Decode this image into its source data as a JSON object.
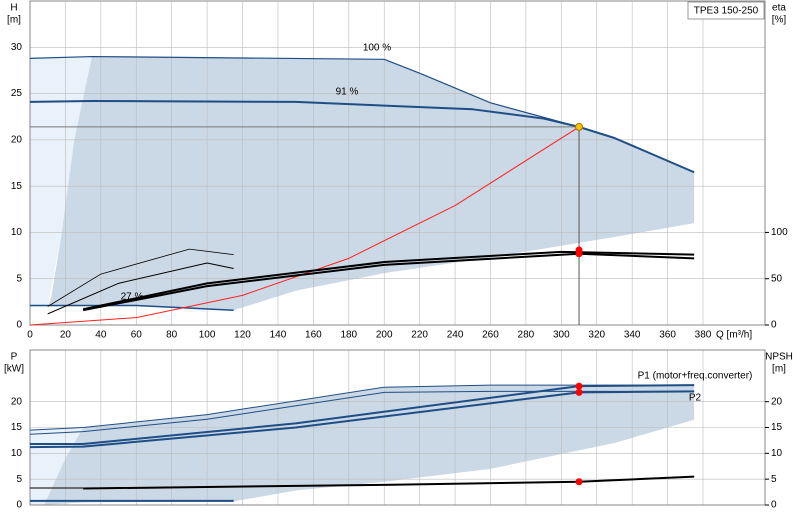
{
  "chart_data": [
    {
      "type": "line",
      "title": "TPE3 150-250",
      "ylabel": "H",
      "yunit": "[m]",
      "y2label": "eta",
      "y2unit": "[%]",
      "xlabel": "Q [m³/h]",
      "xlim": [
        0,
        415
      ],
      "xticks": [
        0,
        20,
        40,
        60,
        80,
        100,
        120,
        140,
        160,
        180,
        200,
        220,
        240,
        260,
        280,
        300,
        320,
        340,
        360,
        380
      ],
      "ylim": [
        0,
        35
      ],
      "yticks": [
        0,
        5,
        10,
        15,
        20,
        25,
        30
      ],
      "y2lim": [
        0,
        350
      ],
      "y2ticks": [
        0,
        50,
        100
      ],
      "grid": true,
      "areas": [
        {
          "color": "#e9f1fa",
          "x": [
            0,
            35,
            25,
            18,
            10,
            0
          ],
          "values": [
            28.8,
            29,
            20,
            10,
            2,
            2
          ]
        },
        {
          "color": "#cbd8e5",
          "x": [
            35,
            200,
            220,
            260,
            310,
            330,
            375,
            375,
            330,
            260,
            200,
            150,
            115,
            60,
            10,
            12,
            18,
            25
          ],
          "values": [
            29,
            28.7,
            27.2,
            24,
            21.4,
            20.2,
            16.5,
            11,
            9.5,
            7.3,
            5.6,
            3.7,
            1.6,
            2.1,
            2,
            3,
            10,
            20
          ]
        }
      ],
      "series": [
        {
          "name": "100 %",
          "color": "#1f4e86",
          "width": 1.2,
          "x": [
            0,
            35,
            200,
            220,
            260,
            310,
            330,
            375
          ],
          "values": [
            28.8,
            29,
            28.7,
            27.2,
            24,
            21.4,
            20.2,
            16.5
          ]
        },
        {
          "name": "91 %",
          "color": "#1f4e86",
          "width": 2,
          "x": [
            0,
            35,
            150,
            250,
            290,
            310,
            330,
            375
          ],
          "values": [
            24.1,
            24.2,
            24.1,
            23.3,
            22.3,
            21.4,
            20.2,
            16.5
          ]
        },
        {
          "name": "27 %",
          "color": "#1f4e86",
          "width": 1.5,
          "x": [
            0,
            60,
            115
          ],
          "values": [
            2.1,
            2.1,
            1.6
          ]
        },
        {
          "color": "#ff2020",
          "width": 1,
          "x": [
            0,
            60,
            120,
            180,
            240,
            310
          ],
          "values": [
            0,
            0.8,
            3.2,
            7.2,
            12.9,
            21.4
          ]
        },
        {
          "color": "#777777",
          "width": 1,
          "x": [
            0,
            310
          ],
          "values": [
            21.4,
            21.4
          ]
        },
        {
          "color": "#555555",
          "width": 1,
          "x": [
            310,
            310
          ],
          "values": [
            21.4,
            0
          ]
        },
        {
          "color": "#000000",
          "width": 0.8,
          "axis": "y2",
          "x": [
            10,
            40,
            90,
            115
          ],
          "values": [
            20,
            55,
            82,
            76
          ]
        },
        {
          "color": "#000000",
          "width": 1,
          "axis": "y2",
          "x": [
            10,
            50,
            100,
            115
          ],
          "values": [
            12,
            45,
            67,
            61
          ]
        },
        {
          "color": "#000000",
          "width": 2,
          "axis": "y2",
          "x": [
            30,
            100,
            200,
            300,
            375
          ],
          "values": [
            17,
            45,
            68,
            79,
            76
          ]
        },
        {
          "color": "#000000",
          "width": 2,
          "axis": "y2",
          "x": [
            30,
            100,
            200,
            310,
            375
          ],
          "values": [
            16,
            42,
            65,
            77,
            72
          ]
        },
        {
          "color": "#f5c400",
          "marker": true,
          "x": [
            310
          ],
          "values": [
            21.4
          ]
        },
        {
          "color": "#ff0000",
          "marker": true,
          "axis": "y2",
          "x": [
            310,
            310
          ],
          "values": [
            81,
            77
          ]
        }
      ]
    },
    {
      "type": "line",
      "ylabel": "P",
      "yunit": "[kW]",
      "y2label": "NPSH",
      "y2unit": "[m]",
      "xlim": [
        0,
        415
      ],
      "ylim": [
        0,
        30
      ],
      "yticks": [
        0,
        5,
        10,
        15,
        20
      ],
      "y2lim": [
        0,
        30
      ],
      "y2ticks": [
        0,
        5,
        10,
        15,
        20
      ],
      "grid": true,
      "areas": [
        {
          "color": "#e9f1fa",
          "x": [
            0,
            30,
            20,
            12,
            8,
            0
          ],
          "values": [
            14.5,
            15,
            9,
            3,
            0,
            0
          ]
        },
        {
          "color": "#cbd8e5",
          "x": [
            30,
            100,
            200,
            260,
            375,
            375,
            330,
            260,
            200,
            150,
            115,
            30,
            8,
            12,
            20
          ],
          "values": [
            15,
            17.5,
            22.8,
            23.2,
            23.2,
            16.5,
            12,
            7,
            4.5,
            2.8,
            0.7,
            0.5,
            0,
            3,
            9
          ]
        }
      ],
      "series": [
        {
          "name": "P1 (motor+freq.converter)",
          "color": "#1f4e86",
          "width": 2,
          "x": [
            0,
            30,
            150,
            310,
            375
          ],
          "values": [
            11.8,
            11.8,
            15.8,
            23,
            23.2
          ]
        },
        {
          "name": "P2",
          "color": "#1f4e86",
          "width": 2,
          "x": [
            0,
            30,
            150,
            310,
            375
          ],
          "values": [
            11.2,
            11.3,
            15,
            21.8,
            22
          ]
        },
        {
          "color": "#1f4e86",
          "width": 1,
          "x": [
            0,
            30,
            100,
            200,
            260,
            375
          ],
          "values": [
            14.5,
            15,
            17.5,
            22.8,
            23.2,
            23.2
          ]
        },
        {
          "color": "#1f4e86",
          "width": 1,
          "x": [
            0,
            30,
            100,
            200,
            260,
            375
          ],
          "values": [
            13.7,
            14.2,
            16.6,
            21.8,
            22,
            22
          ]
        },
        {
          "color": "#1f4e86",
          "width": 2,
          "x": [
            0,
            115
          ],
          "values": [
            0.8,
            0.8
          ]
        },
        {
          "color": "#000000",
          "width": 1,
          "axis": "y2",
          "x": [
            0,
            30
          ],
          "values": [
            3.3,
            3.3
          ]
        },
        {
          "color": "#000000",
          "width": 2,
          "axis": "y2",
          "x": [
            30,
            200,
            310,
            375
          ],
          "values": [
            3.2,
            3.9,
            4.5,
            5.5
          ]
        },
        {
          "color": "#ff0000",
          "marker": true,
          "x": [
            310,
            310
          ],
          "values": [
            23,
            21.8
          ]
        },
        {
          "color": "#ff0000",
          "marker": true,
          "axis": "y2",
          "x": [
            310
          ],
          "values": [
            4.5
          ]
        }
      ]
    }
  ]
}
